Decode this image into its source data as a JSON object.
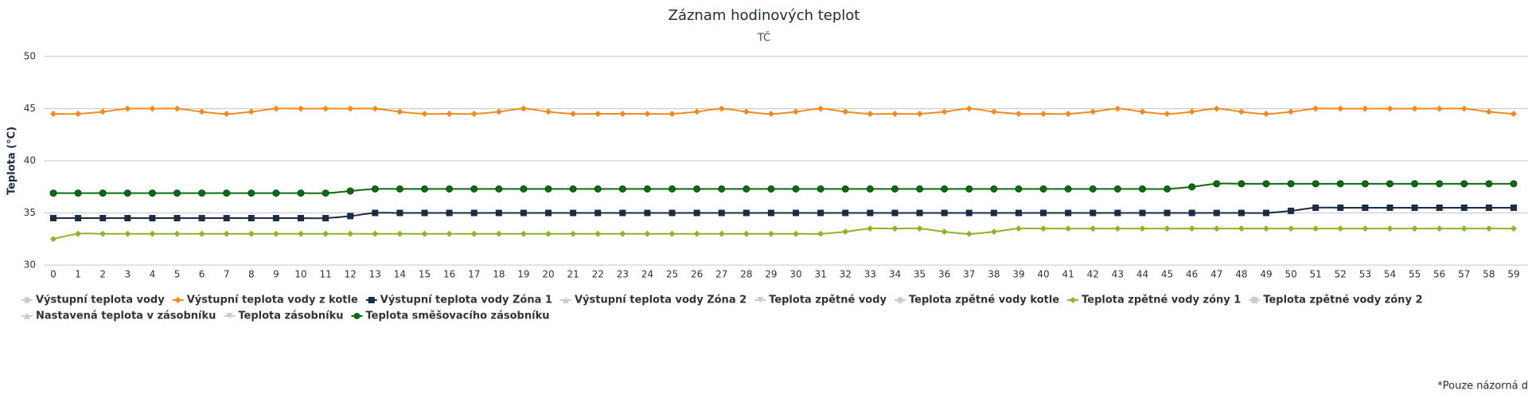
{
  "chart_data": {
    "type": "line",
    "title": "Záznam hodinových teplot",
    "subtitle": "TČ",
    "y_label": "Teplota (°C)",
    "footnote": "*Pouze názorná d",
    "x": [
      0,
      1,
      2,
      3,
      4,
      5,
      6,
      7,
      8,
      9,
      10,
      11,
      12,
      13,
      14,
      15,
      16,
      17,
      18,
      19,
      20,
      21,
      22,
      23,
      24,
      25,
      26,
      27,
      28,
      29,
      30,
      31,
      32,
      33,
      34,
      35,
      36,
      37,
      38,
      39,
      40,
      41,
      42,
      43,
      44,
      45,
      46,
      47,
      48,
      49,
      50,
      51,
      52,
      53,
      54,
      55,
      56,
      57,
      58,
      59
    ],
    "xlim": [
      0,
      59
    ],
    "xticks": [
      0,
      1,
      2,
      3,
      4,
      5,
      6,
      7,
      8,
      9,
      10,
      11,
      12,
      13,
      14,
      15,
      16,
      17,
      18,
      19,
      20,
      21,
      22,
      23,
      24,
      25,
      26,
      27,
      28,
      29,
      30,
      31,
      32,
      33,
      34,
      35,
      36,
      37,
      38,
      39,
      40,
      41,
      42,
      43,
      44,
      45,
      46,
      47,
      48,
      49,
      50,
      51,
      52,
      53,
      54,
      55,
      56,
      57,
      58,
      59
    ],
    "ylim": [
      30,
      50
    ],
    "yticks": [
      30,
      35,
      40,
      45,
      50
    ],
    "grid": true,
    "smooth": true,
    "series": [
      {
        "name": "Výstupní teplota vody",
        "marker": "circle",
        "visible": false
      },
      {
        "name": "Výstupní teplota vody z kotle",
        "marker": "diamond",
        "visible": true,
        "color": "#f28a1f",
        "values": [
          44.5,
          44.5,
          44.7,
          45,
          45,
          45,
          44.7,
          44.5,
          44.7,
          45,
          45,
          45,
          45,
          45,
          44.7,
          44.5,
          44.5,
          44.5,
          44.7,
          45,
          44.7,
          44.5,
          44.5,
          44.5,
          44.5,
          44.5,
          44.7,
          45,
          44.7,
          44.5,
          44.7,
          45,
          44.7,
          44.5,
          44.5,
          44.5,
          44.7,
          45,
          44.7,
          44.5,
          44.5,
          44.5,
          44.7,
          45,
          44.7,
          44.5,
          44.7,
          45,
          44.7,
          44.5,
          44.7,
          45,
          45,
          45,
          45,
          45,
          45,
          45,
          44.7,
          44.5
        ]
      },
      {
        "name": "Výstupní teplota vody Zóna 1",
        "marker": "square",
        "visible": true,
        "color": "#1b2a45",
        "values": [
          34.5,
          34.5,
          34.5,
          34.5,
          34.5,
          34.5,
          34.5,
          34.5,
          34.5,
          34.5,
          34.5,
          34.5,
          34.7,
          35,
          35,
          35,
          35,
          35,
          35,
          35,
          35,
          35,
          35,
          35,
          35,
          35,
          35,
          35,
          35,
          35,
          35,
          35,
          35,
          35,
          35,
          35,
          35,
          35,
          35,
          35,
          35,
          35,
          35,
          35,
          35,
          35,
          35,
          35,
          35,
          35,
          35.2,
          35.5,
          35.5,
          35.5,
          35.5,
          35.5,
          35.5,
          35.5,
          35.5,
          35.5
        ]
      },
      {
        "name": "Výstupní teplota vody Zóna 2",
        "marker": "triangle",
        "visible": false
      },
      {
        "name": "Teplota zpětné vody",
        "marker": "triangle-down",
        "visible": false
      },
      {
        "name": "Teplota zpětné vody kotle",
        "marker": "circle",
        "visible": false
      },
      {
        "name": "Teplota zpětné vody zóny 1",
        "marker": "diamond",
        "visible": true,
        "color": "#8db52b",
        "values": [
          32.5,
          33,
          33,
          33,
          33,
          33,
          33,
          33,
          33,
          33,
          33,
          33,
          33,
          33,
          33,
          33,
          33,
          33,
          33,
          33,
          33,
          33,
          33,
          33,
          33,
          33,
          33,
          33,
          33,
          33,
          33,
          33,
          33.2,
          33.5,
          33.5,
          33.5,
          33.2,
          33,
          33.2,
          33.5,
          33.5,
          33.5,
          33.5,
          33.5,
          33.5,
          33.5,
          33.5,
          33.5,
          33.5,
          33.5,
          33.5,
          33.5,
          33.5,
          33.5,
          33.5,
          33.5,
          33.5,
          33.5,
          33.5,
          33.5
        ]
      },
      {
        "name": "Teplota zpětné vody zóny 2",
        "marker": "square",
        "visible": false
      },
      {
        "name": "Nastavená teplota v zásobníku",
        "marker": "triangle",
        "visible": false
      },
      {
        "name": "Teplota zásobníku",
        "marker": "triangle-down",
        "visible": false
      },
      {
        "name": "Teplota směšovacího zásobníku",
        "marker": "circle",
        "visible": true,
        "color": "#0d6b12",
        "values": [
          36.9,
          36.9,
          36.9,
          36.9,
          36.9,
          36.9,
          36.9,
          36.9,
          36.9,
          36.9,
          36.9,
          36.9,
          37.1,
          37.3,
          37.3,
          37.3,
          37.3,
          37.3,
          37.3,
          37.3,
          37.3,
          37.3,
          37.3,
          37.3,
          37.3,
          37.3,
          37.3,
          37.3,
          37.3,
          37.3,
          37.3,
          37.3,
          37.3,
          37.3,
          37.3,
          37.3,
          37.3,
          37.3,
          37.3,
          37.3,
          37.3,
          37.3,
          37.3,
          37.3,
          37.3,
          37.3,
          37.5,
          37.8,
          37.8,
          37.8,
          37.8,
          37.8,
          37.8,
          37.8,
          37.8,
          37.8,
          37.8,
          37.8,
          37.8,
          37.8
        ]
      }
    ]
  }
}
